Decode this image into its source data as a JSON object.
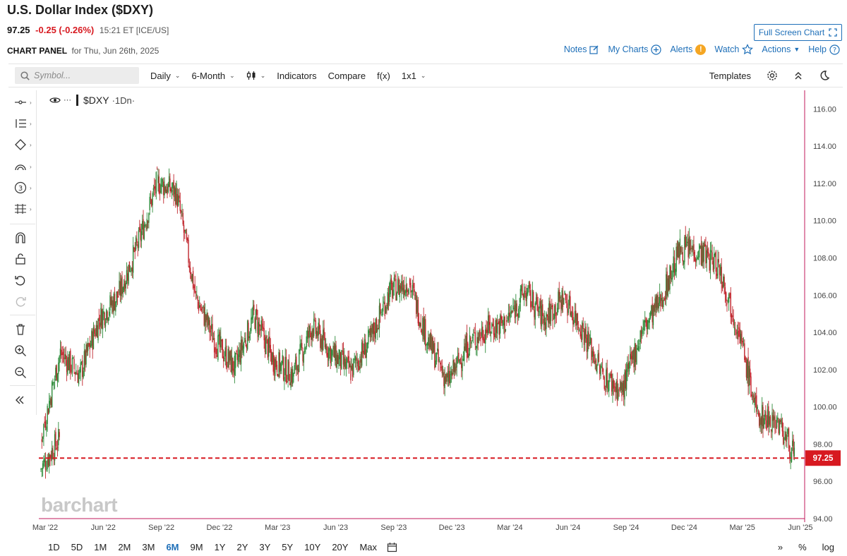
{
  "header": {
    "title": "U.S. Dollar Index ($DXY)",
    "price": "97.25",
    "change": "-0.25 (-0.26%)",
    "time": "15:21 ET [ICE/US]",
    "panel_label": "CHART PANEL",
    "panel_date": "for Thu, Jun 26th, 2025",
    "full_screen": "Full Screen Chart",
    "links": {
      "notes": "Notes",
      "my_charts": "My Charts",
      "alerts": "Alerts",
      "watch": "Watch",
      "actions": "Actions",
      "help": "Help"
    }
  },
  "toolbar": {
    "search_placeholder": "Symbol...",
    "interval": "Daily",
    "period": "6-Month",
    "indicators": "Indicators",
    "compare": "Compare",
    "fx": "f(x)",
    "layout": "1x1",
    "templates": "Templates"
  },
  "legend": {
    "symbol": "$DXY",
    "suffix": "·1Dn·"
  },
  "watermark": "barchart",
  "ranges": [
    "1D",
    "5D",
    "1M",
    "2M",
    "3M",
    "6M",
    "9M",
    "1Y",
    "2Y",
    "3Y",
    "5Y",
    "10Y",
    "20Y",
    "Max"
  ],
  "active_range": "6M",
  "bottom_right": {
    "percent": "%",
    "log": "log"
  },
  "left_tools": [
    "crosshair-icon",
    "trend-lines-icon",
    "shapes-icon",
    "arc-icon",
    "counter-icon",
    "fib-icon",
    "magnet-icon",
    "lock-icon",
    "undo-icon",
    "redo-icon",
    "trash-icon",
    "zoom-in-icon",
    "zoom-out-icon",
    "collapse-icon"
  ],
  "colors": {
    "up": "#2e8b3a",
    "down": "#c0262d",
    "price_line": "#d71920",
    "axis_line": "#c2185b",
    "link": "#1e6fb8"
  },
  "chart_data": {
    "type": "candlestick",
    "symbol": "$DXY",
    "last_price": 97.25,
    "ylim": [
      94,
      117
    ],
    "y_ticks": [
      "116.00",
      "114.00",
      "112.00",
      "110.00",
      "108.00",
      "106.00",
      "104.00",
      "102.00",
      "100.00",
      "98.00",
      "96.00",
      "94.00"
    ],
    "x_ticks": [
      "Mar '22",
      "Jun '22",
      "Sep '22",
      "Dec '22",
      "Mar '23",
      "Jun '23",
      "Sep '23",
      "Dec '23",
      "Mar '24",
      "Jun '24",
      "Sep '24",
      "Dec '24",
      "Mar '25",
      "Jun '25"
    ],
    "monthly_close": [
      {
        "d": "2022-03",
        "v": 98.3
      },
      {
        "d": "2022-04",
        "v": 102.9
      },
      {
        "d": "2022-05",
        "v": 101.7
      },
      {
        "d": "2022-06",
        "v": 104.7
      },
      {
        "d": "2022-07",
        "v": 106.0
      },
      {
        "d": "2022-08",
        "v": 108.7
      },
      {
        "d": "2022-09",
        "v": 112.1
      },
      {
        "d": "2022-10",
        "v": 111.5
      },
      {
        "d": "2022-11",
        "v": 105.9
      },
      {
        "d": "2022-12",
        "v": 103.5
      },
      {
        "d": "2023-01",
        "v": 102.1
      },
      {
        "d": "2023-02",
        "v": 104.9
      },
      {
        "d": "2023-03",
        "v": 102.5
      },
      {
        "d": "2023-04",
        "v": 101.7
      },
      {
        "d": "2023-05",
        "v": 104.3
      },
      {
        "d": "2023-06",
        "v": 102.9
      },
      {
        "d": "2023-07",
        "v": 101.9
      },
      {
        "d": "2023-08",
        "v": 103.6
      },
      {
        "d": "2023-09",
        "v": 106.2
      },
      {
        "d": "2023-10",
        "v": 106.7
      },
      {
        "d": "2023-11",
        "v": 103.5
      },
      {
        "d": "2023-12",
        "v": 101.3
      },
      {
        "d": "2024-01",
        "v": 103.3
      },
      {
        "d": "2024-02",
        "v": 104.2
      },
      {
        "d": "2024-03",
        "v": 104.5
      },
      {
        "d": "2024-04",
        "v": 106.2
      },
      {
        "d": "2024-05",
        "v": 104.7
      },
      {
        "d": "2024-06",
        "v": 105.9
      },
      {
        "d": "2024-07",
        "v": 104.1
      },
      {
        "d": "2024-08",
        "v": 101.7
      },
      {
        "d": "2024-09",
        "v": 100.8
      },
      {
        "d": "2024-10",
        "v": 104.0
      },
      {
        "d": "2024-11",
        "v": 105.7
      },
      {
        "d": "2024-12",
        "v": 108.5
      },
      {
        "d": "2025-01",
        "v": 108.4
      },
      {
        "d": "2025-02",
        "v": 107.6
      },
      {
        "d": "2025-03",
        "v": 104.2
      },
      {
        "d": "2025-04",
        "v": 99.5
      },
      {
        "d": "2025-05",
        "v": 99.3
      },
      {
        "d": "2025-06",
        "v": 97.25
      }
    ]
  }
}
